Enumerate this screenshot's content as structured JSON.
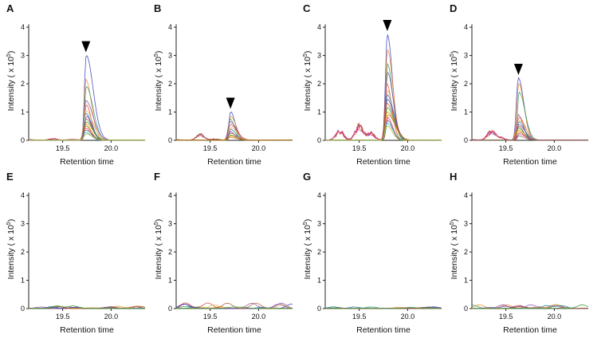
{
  "figure": {
    "panels": [
      "A",
      "B",
      "C",
      "D",
      "E",
      "F",
      "G",
      "H"
    ],
    "ylabel": "Intensity ( x 10^5)",
    "ylabel_base": "Intensity ( x 10",
    "ylabel_exp": "5",
    "ylabel_close": ")",
    "xlabel": "Retention time"
  },
  "chart_data": [
    {
      "panel": "A",
      "type": "line",
      "xlabel": "Retention time",
      "ylabel": "Intensity ( x 10^5)",
      "xlim": [
        19.15,
        20.35
      ],
      "ylim": [
        0,
        4.2
      ],
      "yticks": [
        0,
        1,
        2,
        3,
        4
      ],
      "xticks": [
        19.5,
        20.0
      ],
      "peak_marker": true,
      "peak_x": 19.74,
      "peak_max": 3.0,
      "background": [
        [
          19.15,
          0.02
        ],
        [
          19.4,
          0.06
        ],
        [
          19.6,
          0.03
        ]
      ],
      "series_peaks": [
        3.0,
        2.15,
        1.9,
        1.4,
        1.25,
        1.05,
        0.95,
        0.85,
        0.75,
        0.65,
        0.58,
        0.5,
        0.42,
        0.35,
        0.28,
        0.22
      ]
    },
    {
      "panel": "B",
      "type": "line",
      "xlabel": "Retention time",
      "ylabel": "Intensity ( x 10^5)",
      "xlim": [
        19.15,
        20.35
      ],
      "ylim": [
        0,
        4.2
      ],
      "yticks": [
        0,
        1,
        2,
        3,
        4
      ],
      "xticks": [
        19.5,
        20.0
      ],
      "peak_marker": true,
      "peak_x": 19.71,
      "peak_max": 1.0,
      "background": [
        [
          19.15,
          0.02
        ],
        [
          19.4,
          0.25
        ],
        [
          19.55,
          0.05
        ]
      ],
      "series_peaks": [
        1.0,
        0.85,
        0.75,
        0.65,
        0.55,
        0.45,
        0.38,
        0.3,
        0.24,
        0.18,
        0.14,
        0.1
      ]
    },
    {
      "panel": "C",
      "type": "line",
      "xlabel": "Retention time",
      "ylabel": "Intensity ( x 10^5)",
      "xlim": [
        19.15,
        20.35
      ],
      "ylim": [
        0,
        4.2
      ],
      "yticks": [
        0,
        1,
        2,
        3,
        4
      ],
      "xticks": [
        19.5,
        20.0
      ],
      "peak_marker": true,
      "peak_x": 19.79,
      "peak_max": 3.75,
      "background": [
        [
          19.3,
          0.4
        ],
        [
          19.5,
          0.62
        ],
        [
          19.62,
          0.3
        ]
      ],
      "series_peaks": [
        3.75,
        3.2,
        2.7,
        2.4,
        2.0,
        1.75,
        1.6,
        1.45,
        1.3,
        1.15,
        1.0,
        0.9,
        0.8,
        0.7,
        0.6,
        0.5
      ]
    },
    {
      "panel": "D",
      "type": "line",
      "xlabel": "Retention time",
      "ylabel": "Intensity ( x 10^5)",
      "xlim": [
        19.15,
        20.35
      ],
      "ylim": [
        0,
        4.2
      ],
      "yticks": [
        0,
        1,
        2,
        3,
        4
      ],
      "xticks": [
        19.5,
        20.0
      ],
      "peak_marker": true,
      "peak_x": 19.63,
      "peak_max": 2.2,
      "background": [
        [
          19.15,
          0.02
        ],
        [
          19.35,
          0.4
        ],
        [
          19.45,
          0.1
        ]
      ],
      "series_peaks": [
        2.2,
        2.0,
        1.7,
        0.9,
        0.8,
        0.72,
        0.65,
        0.55,
        0.48,
        0.42,
        0.35,
        0.28,
        0.22,
        0.15
      ]
    },
    {
      "panel": "E",
      "type": "line",
      "xlabel": "Retention time",
      "ylabel": "Intensity ( x 10^5)",
      "xlim": [
        19.15,
        20.35
      ],
      "ylim": [
        0,
        4.2
      ],
      "yticks": [
        0,
        1,
        2,
        3,
        4
      ],
      "xticks": [
        19.5,
        20.0
      ],
      "peak_marker": false,
      "noise_max": 0.1
    },
    {
      "panel": "F",
      "type": "line",
      "xlabel": "Retention time",
      "ylabel": "Intensity ( x 10^5)",
      "xlim": [
        19.15,
        20.35
      ],
      "ylim": [
        0,
        4.2
      ],
      "yticks": [
        0,
        1,
        2,
        3,
        4
      ],
      "xticks": [
        19.5,
        20.0
      ],
      "peak_marker": false,
      "noise_max": 0.2
    },
    {
      "panel": "G",
      "type": "line",
      "xlabel": "Retention time",
      "ylabel": "Intensity ( x 10^5)",
      "xlim": [
        19.15,
        20.35
      ],
      "ylim": [
        0,
        4.2
      ],
      "yticks": [
        0,
        1,
        2,
        3,
        4
      ],
      "xticks": [
        19.5,
        20.0
      ],
      "peak_marker": false,
      "noise_max": 0.06
    },
    {
      "panel": "H",
      "type": "line",
      "xlabel": "Retention time",
      "ylabel": "Intensity ( x 10^5)",
      "xlim": [
        19.15,
        20.35
      ],
      "ylim": [
        0,
        4.2
      ],
      "yticks": [
        0,
        1,
        2,
        3,
        4
      ],
      "xticks": [
        19.5,
        20.0
      ],
      "peak_marker": false,
      "noise_max": 0.14
    }
  ],
  "colors": [
    "#3a3fc4",
    "#f08a1c",
    "#2c9d6e",
    "#8b4aa8",
    "#d6493b",
    "#e9b44c",
    "#1f78b4",
    "#6a3d9a",
    "#b15928",
    "#33a02c",
    "#ff7f00",
    "#a6761d",
    "#e7298a",
    "#666666",
    "#17becf",
    "#bcbd22"
  ]
}
